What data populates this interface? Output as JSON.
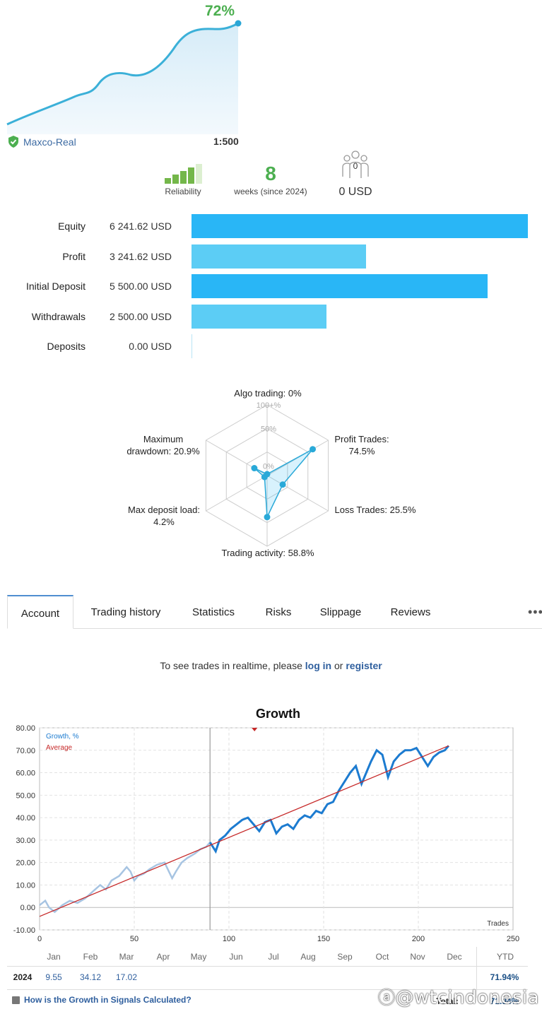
{
  "summary": {
    "growth_pct": "72%",
    "broker": "Maxco-Real",
    "leverage": "1:500",
    "reliability_label": "Reliability",
    "reliability_level": 3,
    "weeks": "8",
    "weeks_label": "weeks (since 2024)",
    "subscribers_count": "0",
    "subscribers_value": "0 USD"
  },
  "balances": [
    {
      "label": "Equity",
      "value": "6 241.62 USD",
      "amount": 6241.62,
      "color": "#29b6f6"
    },
    {
      "label": "Profit",
      "value": "3 241.62 USD",
      "amount": 3241.62,
      "color": "#5ccdf5"
    },
    {
      "label": "Initial Deposit",
      "value": "5 500.00 USD",
      "amount": 5500.0,
      "color": "#29b6f6"
    },
    {
      "label": "Withdrawals",
      "value": "2 500.00 USD",
      "amount": 2500.0,
      "color": "#5ccdf5"
    },
    {
      "label": "Deposits",
      "value": "0.00 USD",
      "amount": 0,
      "color": "#5ccdf5"
    }
  ],
  "radar": {
    "scale_labels": [
      "100+%",
      "50%",
      "0%"
    ],
    "axes": [
      {
        "name": "Algo trading",
        "label": "Algo trading: 0%",
        "value": 0
      },
      {
        "name": "Profit Trades",
        "label": "Profit Trades:\n74.5%",
        "value": 74.5
      },
      {
        "name": "Loss Trades",
        "label": "Loss Trades: 25.5%",
        "value": 25.5
      },
      {
        "name": "Trading activity",
        "label": "Trading activity: 58.8%",
        "value": 58.8
      },
      {
        "name": "Max deposit load",
        "label": "Max deposit load:\n4.2%",
        "value": 4.2
      },
      {
        "name": "Maximum drawdown",
        "label": "Maximum\ndrawdown: 20.9%",
        "value": 20.9
      }
    ]
  },
  "tabs": [
    "Account",
    "Trading history",
    "Statistics",
    "Risks",
    "Slippage",
    "Reviews"
  ],
  "more_label": "•••",
  "realtime": {
    "prefix": "To see trades in realtime, please",
    "login": "log in",
    "middle": "or",
    "register": "register"
  },
  "chart_data": {
    "type": "line",
    "title": "Growth",
    "xlabel": "Trades",
    "ylabel": "",
    "xlim": [
      0,
      250
    ],
    "ylim": [
      -10,
      80
    ],
    "x_ticks": [
      0,
      50,
      100,
      150,
      200,
      250
    ],
    "y_ticks": [
      "80.00",
      "70.00",
      "60.00",
      "50.00",
      "40.00",
      "30.00",
      "20.00",
      "10.00",
      "0.00",
      "-10.00"
    ],
    "legend": [
      "Growth, %",
      "Average"
    ],
    "legend_placement": "top-left",
    "grid": true,
    "divider_x": 90,
    "series": [
      {
        "name": "Growth, %",
        "color": "#1c7bd0",
        "x": [
          0,
          3,
          5,
          8,
          12,
          16,
          20,
          24,
          28,
          32,
          35,
          38,
          42,
          46,
          48,
          50,
          52,
          55,
          58,
          62,
          66,
          70,
          72,
          75,
          78,
          82,
          85,
          88,
          90
        ],
        "y": [
          1,
          3,
          0,
          -2,
          1,
          3,
          2,
          4,
          7,
          10,
          8,
          12,
          14,
          18,
          16,
          12,
          14,
          15,
          17,
          19,
          20,
          13,
          16,
          20,
          22,
          24,
          26,
          27,
          29
        ]
      },
      {
        "name": "Growth, %",
        "color": "#1c7bd0",
        "x": [
          90,
          93,
          95,
          98,
          101,
          104,
          107,
          110,
          113,
          116,
          119,
          122,
          125,
          128,
          131,
          134,
          137,
          140,
          143,
          146,
          149,
          152,
          155,
          158,
          161,
          164,
          167,
          170,
          172,
          175,
          178,
          181,
          184,
          187,
          190,
          193,
          196,
          199,
          202,
          205,
          208,
          211,
          214,
          216
        ],
        "y": [
          29,
          25,
          30,
          32,
          35,
          37,
          39,
          40,
          37,
          34,
          38,
          39,
          33,
          36,
          37,
          35,
          39,
          41,
          40,
          43,
          42,
          46,
          47,
          52,
          56,
          60,
          63,
          55,
          59,
          65,
          70,
          68,
          58,
          65,
          68,
          70,
          70,
          71,
          67,
          63,
          67,
          69,
          70,
          72
        ]
      },
      {
        "name": "Average",
        "color": "#c62828",
        "x": [
          0,
          216
        ],
        "y": [
          -4,
          72
        ]
      }
    ],
    "months": [
      "Jan",
      "Feb",
      "Mar",
      "Apr",
      "May",
      "Jun",
      "Jul",
      "Aug",
      "Sep",
      "Oct",
      "Nov",
      "Dec"
    ],
    "ytd_label": "YTD",
    "table_rows": [
      {
        "year": "2024",
        "values": [
          "9.55",
          "34.12",
          "17.02",
          "",
          "",
          "",
          "",
          "",
          "",
          "",
          "",
          ""
        ],
        "ytd": "71.94%"
      }
    ],
    "total_label": "Total:",
    "total_value": "71.94%"
  },
  "footer_question": "How is the Growth in Signals Calculated?",
  "watermark": "@wtcindonesia"
}
